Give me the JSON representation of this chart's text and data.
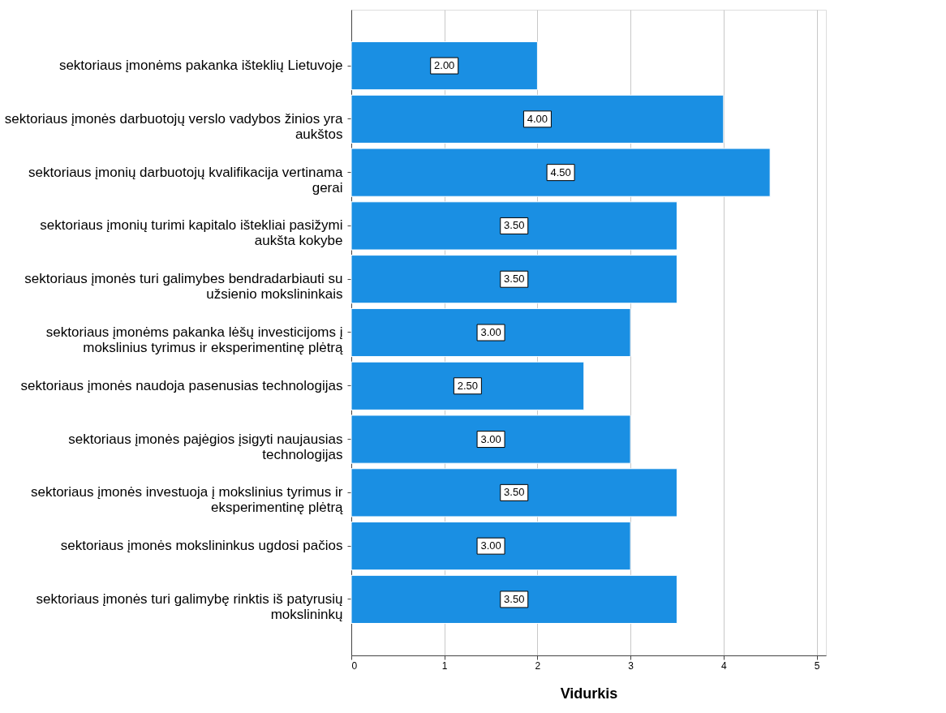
{
  "chart_data": {
    "type": "bar",
    "orientation": "horizontal",
    "xlabel": "Vidurkis",
    "categories": [
      "sektoriaus įmonėms pakanka išteklių Lietuvoje",
      "sektoriaus įmonės darbuotojų verslo vadybos žinios yra aukštos",
      "sektoriaus įmonių darbuotojų kvalifikacija vertinama gerai",
      "sektoriaus įmonių turimi kapitalo ištekliai pasižymi aukšta kokybe",
      "sektoriaus įmonės turi galimybes bendradarbiauti su užsienio mokslininkais",
      "sektoriaus įmonėms pakanka lėšų investicijoms į mokslinius tyrimus ir eksperimentinę plėtrą",
      "sektoriaus įmonės naudoja pasenusias technologijas",
      "sektoriaus įmonės pajėgios įsigyti naujausias technologijas",
      "sektoriaus įmonės investuoja į mokslinius tyrimus ir eksperimentinę plėtrą",
      "sektoriaus įmonės mokslininkus ugdosi pačios",
      "sektoriaus įmonės turi galimybę rinktis iš patyrusių mokslininkų"
    ],
    "values": [
      2.0,
      4.0,
      4.5,
      3.5,
      3.5,
      3.0,
      2.5,
      3.0,
      3.5,
      3.0,
      3.5
    ],
    "value_labels": [
      "2.00",
      "4.00",
      "4.50",
      "3.50",
      "3.50",
      "3.00",
      "2.50",
      "3.00",
      "3.50",
      "3.00",
      "3.50"
    ],
    "color": "#1a8fe3",
    "xlim": [
      0,
      5.1
    ],
    "xticks": [
      0,
      1,
      2,
      3,
      4,
      5
    ],
    "grid": "x"
  }
}
